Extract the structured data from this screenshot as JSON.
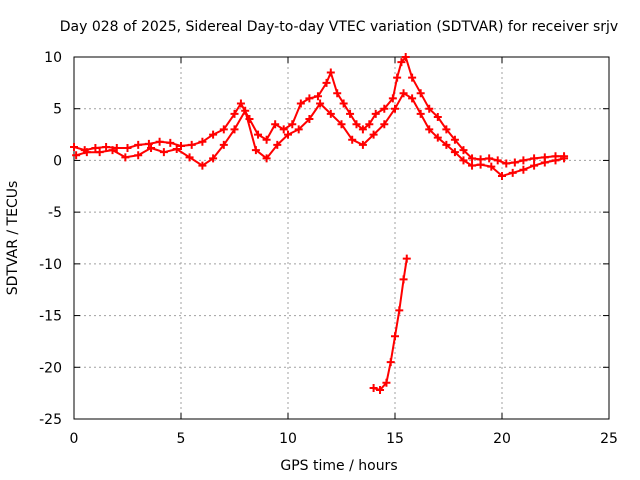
{
  "chart_data": {
    "type": "scatter",
    "title": "Day 028 of 2025, Sidereal Day-to-day VTEC variation (SDTVAR) for receiver srjv",
    "xlabel": "GPS time / hours",
    "ylabel": "SDTVAR / TECUs",
    "xlim": [
      0,
      25
    ],
    "ylim": [
      -25,
      10
    ],
    "xticks": [
      0,
      5,
      10,
      15,
      20,
      25
    ],
    "yticks": [
      10,
      5,
      0,
      -5,
      -10,
      -15,
      -20,
      -25
    ],
    "grid": true,
    "marker": "+",
    "color": "#ff0000",
    "series": [
      {
        "name": "track-1",
        "points": [
          [
            0.0,
            1.3
          ],
          [
            0.5,
            1.0
          ],
          [
            1.0,
            1.2
          ],
          [
            1.5,
            1.3
          ],
          [
            2.0,
            1.2
          ],
          [
            2.5,
            1.2
          ],
          [
            3.0,
            1.5
          ],
          [
            3.5,
            1.6
          ],
          [
            4.0,
            1.8
          ],
          [
            4.5,
            1.7
          ],
          [
            5.0,
            1.4
          ],
          [
            5.5,
            1.5
          ],
          [
            6.0,
            1.8
          ],
          [
            6.5,
            2.5
          ],
          [
            7.0,
            3.0
          ],
          [
            7.5,
            4.5
          ],
          [
            7.8,
            5.5
          ],
          [
            8.2,
            4.0
          ],
          [
            8.6,
            2.5
          ],
          [
            9.0,
            2.0
          ],
          [
            9.4,
            3.5
          ],
          [
            9.8,
            3.0
          ],
          [
            10.2,
            3.5
          ],
          [
            10.6,
            5.5
          ],
          [
            11.0,
            6.0
          ],
          [
            11.4,
            6.2
          ],
          [
            11.8,
            7.5
          ],
          [
            12.0,
            8.5
          ],
          [
            12.3,
            6.5
          ],
          [
            12.6,
            5.5
          ],
          [
            12.9,
            4.5
          ],
          [
            13.2,
            3.5
          ],
          [
            13.5,
            3.0
          ],
          [
            13.8,
            3.5
          ],
          [
            14.1,
            4.5
          ],
          [
            14.5,
            5.0
          ],
          [
            14.9,
            6.0
          ],
          [
            15.1,
            8.0
          ],
          [
            15.3,
            9.5
          ],
          [
            15.5,
            10.0
          ],
          [
            15.8,
            8.0
          ],
          [
            16.2,
            6.5
          ],
          [
            16.6,
            5.0
          ],
          [
            17.0,
            4.2
          ],
          [
            17.4,
            3.0
          ],
          [
            17.8,
            2.0
          ],
          [
            18.2,
            1.0
          ],
          [
            18.6,
            0.2
          ],
          [
            19.0,
            0.1
          ],
          [
            19.4,
            0.2
          ],
          [
            19.8,
            0.0
          ],
          [
            20.2,
            -0.3
          ],
          [
            20.6,
            -0.2
          ],
          [
            21.0,
            0.0
          ],
          [
            21.5,
            0.2
          ],
          [
            22.0,
            0.3
          ],
          [
            22.5,
            0.4
          ],
          [
            22.9,
            0.4
          ]
        ]
      },
      {
        "name": "track-2",
        "points": [
          [
            0.1,
            0.5
          ],
          [
            0.6,
            0.8
          ],
          [
            1.2,
            0.8
          ],
          [
            1.8,
            1.0
          ],
          [
            2.4,
            0.3
          ],
          [
            3.0,
            0.5
          ],
          [
            3.6,
            1.2
          ],
          [
            4.2,
            0.8
          ],
          [
            4.8,
            1.1
          ],
          [
            5.4,
            0.3
          ],
          [
            6.0,
            -0.5
          ],
          [
            6.5,
            0.2
          ],
          [
            7.0,
            1.5
          ],
          [
            7.5,
            3.0
          ],
          [
            8.0,
            4.8
          ],
          [
            8.5,
            1.0
          ],
          [
            9.0,
            0.2
          ],
          [
            9.5,
            1.5
          ],
          [
            10.0,
            2.5
          ],
          [
            10.5,
            3.0
          ],
          [
            11.0,
            4.0
          ],
          [
            11.5,
            5.5
          ],
          [
            12.0,
            4.5
          ],
          [
            12.5,
            3.5
          ],
          [
            13.0,
            2.0
          ],
          [
            13.5,
            1.5
          ],
          [
            14.0,
            2.5
          ],
          [
            14.5,
            3.5
          ],
          [
            15.0,
            5.0
          ],
          [
            15.4,
            6.5
          ],
          [
            15.8,
            6.0
          ],
          [
            16.2,
            4.5
          ],
          [
            16.6,
            3.0
          ],
          [
            17.0,
            2.2
          ],
          [
            17.4,
            1.5
          ],
          [
            17.8,
            0.8
          ],
          [
            18.2,
            0.0
          ],
          [
            18.6,
            -0.5
          ],
          [
            19.0,
            -0.4
          ],
          [
            19.5,
            -0.6
          ],
          [
            20.0,
            -1.5
          ],
          [
            20.5,
            -1.2
          ],
          [
            21.0,
            -0.9
          ],
          [
            21.5,
            -0.5
          ],
          [
            22.0,
            -0.2
          ],
          [
            22.5,
            0.0
          ],
          [
            22.9,
            0.2
          ]
        ]
      },
      {
        "name": "track-3",
        "points": [
          [
            14.0,
            -22.0
          ],
          [
            14.3,
            -22.2
          ],
          [
            14.6,
            -21.5
          ],
          [
            14.8,
            -19.5
          ],
          [
            15.0,
            -17.0
          ],
          [
            15.2,
            -14.5
          ],
          [
            15.4,
            -11.5
          ],
          [
            15.55,
            -9.5
          ]
        ]
      }
    ]
  }
}
